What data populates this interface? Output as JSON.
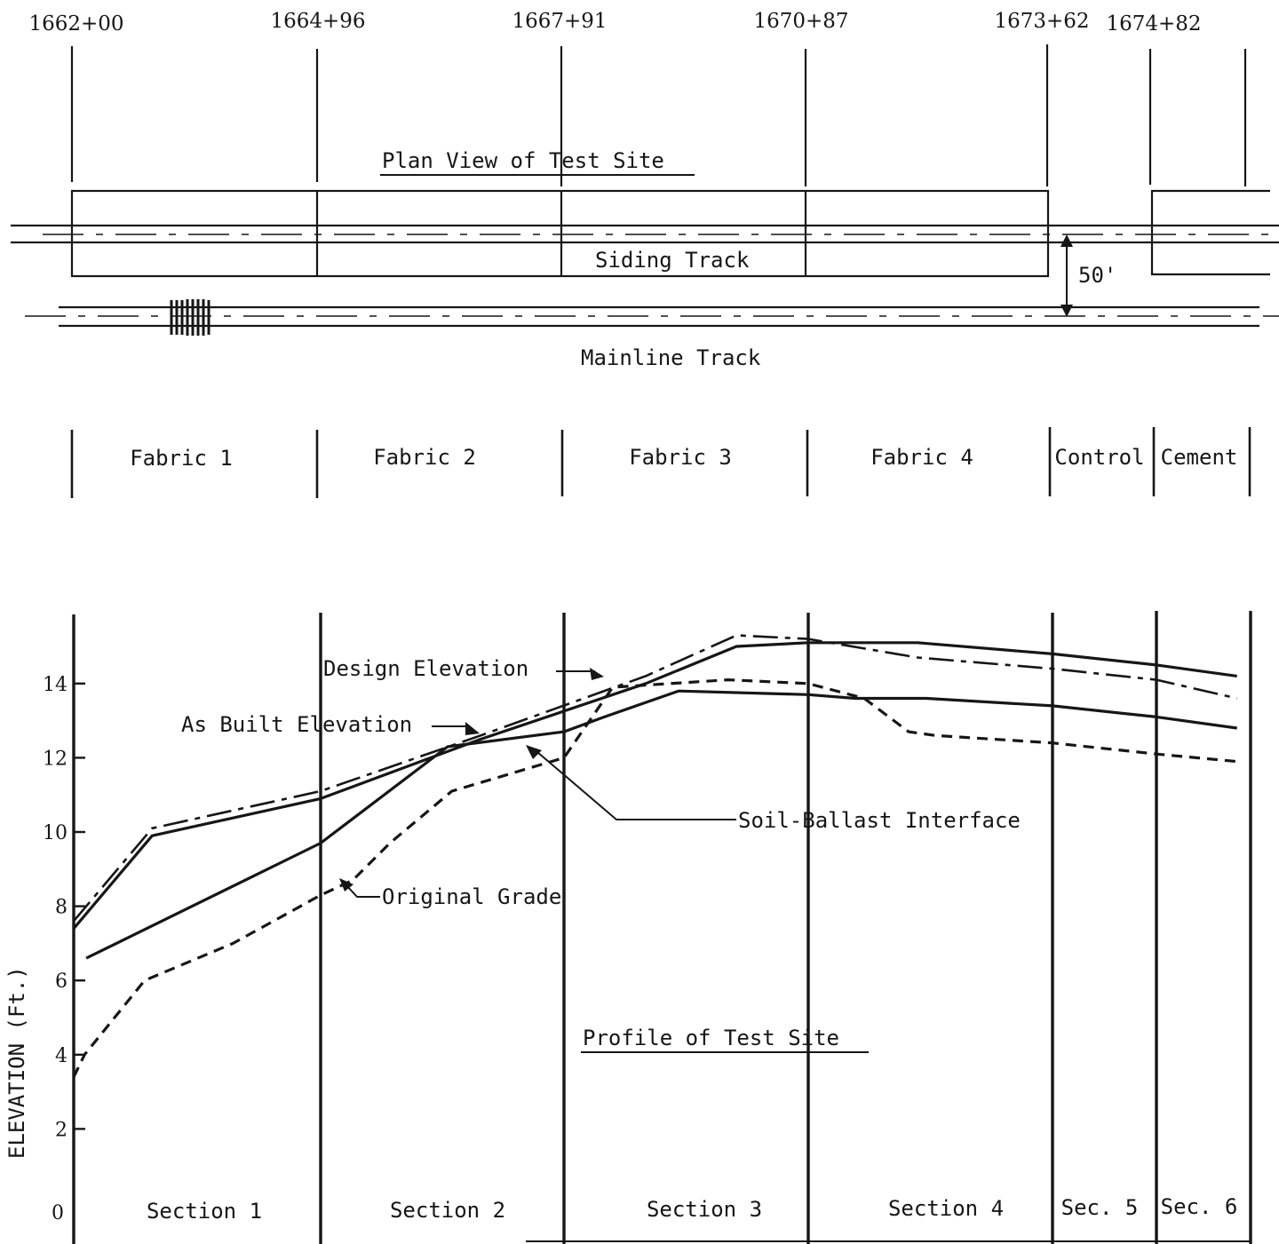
{
  "stations": [
    "1662+00",
    "1664+96",
    "1667+91",
    "1670+87",
    "1673+62",
    "1674+82"
  ],
  "plan": {
    "title": "Plan View of Test Site",
    "siding_label": "Siding Track",
    "mainline_label": "Mainline Track",
    "offset_label": "50'"
  },
  "materials": [
    "Fabric 1",
    "Fabric 2",
    "Fabric 3",
    "Fabric 4",
    "Control",
    "Cement"
  ],
  "profile": {
    "title": "Profile of Test Site",
    "ylabel": "ELEVATION (Ft.)",
    "yticks": [
      "0",
      "2",
      "4",
      "6",
      "8",
      "10",
      "12",
      "14"
    ],
    "sections": [
      "Section 1",
      "Section 2",
      "Section 3",
      "Section 4",
      "Sec. 5",
      "Sec. 6"
    ],
    "callouts": {
      "design": "Design Elevation",
      "as_built": "As Built Elevation",
      "interface": "Soil-Ballast Interface",
      "original": "Original Grade"
    }
  },
  "chart_data": {
    "type": "line",
    "title": "Profile of Test Site",
    "ylabel": "ELEVATION (Ft.)",
    "ylim": [
      0,
      15.5
    ],
    "x_boundaries": [
      "1662+00",
      "1664+96",
      "1667+91",
      "1670+87",
      "1673+62",
      "1674+82"
    ],
    "series": [
      {
        "name": "Design Elevation",
        "style": "dash-dot",
        "x": [
          "1662+00",
          "1662+94",
          "1664+96",
          "1666+90",
          "1668+90",
          "1670+00",
          "1670+87",
          "1672+10",
          "1673+62",
          "1674+82",
          "1675+75"
        ],
        "y": [
          7.6,
          10.1,
          11.1,
          12.6,
          14.2,
          15.3,
          15.2,
          14.7,
          14.4,
          14.1,
          13.6
        ]
      },
      {
        "name": "As Built Elevation",
        "style": "solid",
        "x": [
          "1662+00",
          "1662+94",
          "1664+96",
          "1666+90",
          "1668+90",
          "1670+00",
          "1670+87",
          "1672+10",
          "1673+62",
          "1674+82",
          "1675+75"
        ],
        "y": [
          7.4,
          9.9,
          10.9,
          12.5,
          14.0,
          15.0,
          15.1,
          15.1,
          14.8,
          14.5,
          14.2
        ]
      },
      {
        "name": "Soil-Ballast Interface",
        "style": "solid",
        "x": [
          "1662+15",
          "1664+96",
          "1666+50",
          "1667+91",
          "1668+40",
          "1669+30",
          "1670+87",
          "1671+40",
          "1672+20",
          "1673+62",
          "1674+82",
          "1675+75"
        ],
        "y": [
          6.6,
          9.7,
          12.3,
          12.7,
          13.1,
          13.8,
          13.7,
          13.6,
          13.6,
          13.4,
          13.1,
          12.8
        ]
      },
      {
        "name": "Original Grade",
        "style": "dashed",
        "x": [
          "1662+00",
          "1662+13",
          "1662+85",
          "1663+91",
          "1664+96",
          "1665+35",
          "1665+80",
          "1666+55",
          "1667+91",
          "1668+50",
          "1669+90",
          "1670+87",
          "1671+50",
          "1672+00",
          "1672+30",
          "1673+62",
          "1674+82",
          "1675+75"
        ],
        "y": [
          3.4,
          4.0,
          6.0,
          7.0,
          8.3,
          8.7,
          9.7,
          11.1,
          12.0,
          13.9,
          14.1,
          14.0,
          13.6,
          12.7,
          12.6,
          12.4,
          12.1,
          11.9
        ]
      }
    ]
  }
}
